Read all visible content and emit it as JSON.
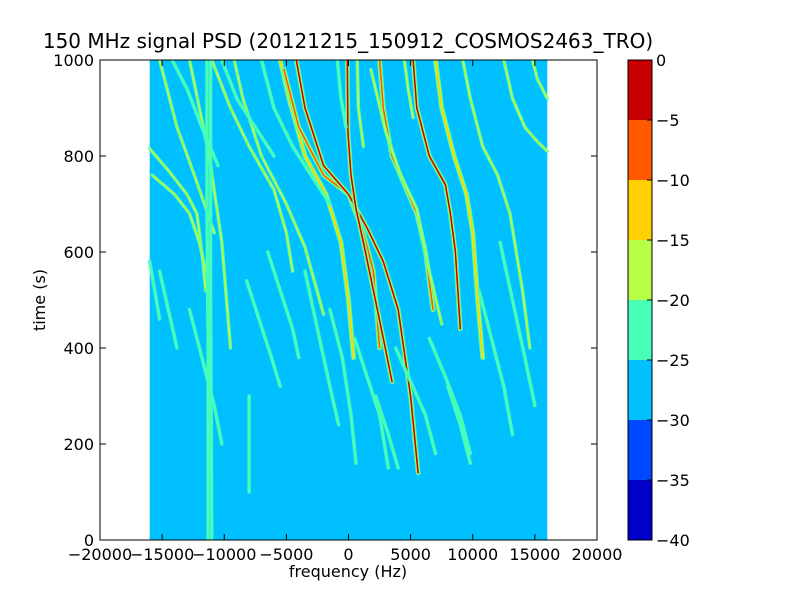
{
  "chart_data": {
    "type": "heatmap",
    "title": "150 MHz signal PSD (20121215_150912_COSMOS2463_TRO)",
    "xlabel": "frequency (Hz)",
    "ylabel": "time (s)",
    "xlim": [
      -20000,
      20000
    ],
    "ylim": [
      0,
      1000
    ],
    "data_extent": {
      "x": [
        -16000,
        16000
      ],
      "y": [
        0,
        1000
      ]
    },
    "x_ticks": [
      -20000,
      -15000,
      -10000,
      -5000,
      0,
      5000,
      10000,
      15000,
      20000
    ],
    "x_tick_labels": [
      "−20000",
      "−15000",
      "−10000",
      "−5000",
      "0",
      "5000",
      "10000",
      "15000",
      "20000"
    ],
    "y_ticks": [
      0,
      200,
      400,
      600,
      800,
      1000
    ],
    "y_tick_labels": [
      "0",
      "200",
      "400",
      "600",
      "800",
      "1000"
    ],
    "background_level": -27.5,
    "colorbar": {
      "min": -40,
      "max": 0,
      "ticks": [
        0,
        -5,
        -10,
        -15,
        -20,
        -25,
        -30,
        -35,
        -40
      ],
      "tick_labels": [
        "0",
        "−5",
        "−10",
        "−15",
        "−20",
        "−25",
        "−30",
        "−35",
        "−40"
      ],
      "levels": [
        {
          "range": [
            -40,
            -35
          ],
          "color": "#0000c8"
        },
        {
          "range": [
            -35,
            -30
          ],
          "color": "#0048ff"
        },
        {
          "range": [
            -30,
            -25
          ],
          "color": "#00c0ff"
        },
        {
          "range": [
            -25,
            -20
          ],
          "color": "#48ffb8"
        },
        {
          "range": [
            -20,
            -15
          ],
          "color": "#b8ff48"
        },
        {
          "range": [
            -15,
            -10
          ],
          "color": "#ffd000"
        },
        {
          "range": [
            -10,
            -5
          ],
          "color": "#ff5a00"
        },
        {
          "range": [
            -5,
            0
          ],
          "color": "#c80000"
        }
      ]
    },
    "traces": [
      {
        "points": [
          [
            -16000,
            815
          ],
          [
            -14500,
            770
          ],
          [
            -13000,
            720
          ],
          [
            -12200,
            680
          ],
          [
            -11800,
            600
          ],
          [
            -11500,
            520
          ]
        ],
        "level": -17
      },
      {
        "points": [
          [
            -15800,
            760
          ],
          [
            -14000,
            720
          ],
          [
            -12800,
            680
          ],
          [
            -12000,
            620
          ],
          [
            -11500,
            560
          ]
        ],
        "level": -18
      },
      {
        "points": [
          [
            -15200,
            1000
          ],
          [
            -13800,
            860
          ],
          [
            -12400,
            760
          ],
          [
            -11600,
            700
          ],
          [
            -10800,
            640
          ]
        ],
        "level": -17
      },
      {
        "points": [
          [
            -12800,
            1000
          ],
          [
            -12000,
            900
          ],
          [
            -11200,
            800
          ],
          [
            -10200,
            620
          ],
          [
            -9500,
            400
          ]
        ],
        "level": -17
      },
      {
        "points": [
          [
            -11000,
            1000
          ],
          [
            -9500,
            900
          ],
          [
            -8000,
            820
          ],
          [
            -6000,
            730
          ],
          [
            -5000,
            640
          ],
          [
            -4500,
            560
          ]
        ],
        "level": -18
      },
      {
        "points": [
          [
            -9200,
            1000
          ],
          [
            -8500,
            920
          ],
          [
            -7000,
            800
          ],
          [
            -5000,
            700
          ],
          [
            -3500,
            610
          ],
          [
            -2000,
            470
          ]
        ],
        "level": -19
      },
      {
        "points": [
          [
            -5500,
            1000
          ],
          [
            -4800,
            920
          ],
          [
            -3500,
            800
          ],
          [
            -1800,
            720
          ],
          [
            -600,
            620
          ],
          [
            0,
            500
          ],
          [
            400,
            380
          ]
        ],
        "level": -12
      },
      {
        "points": [
          [
            -5200,
            980
          ],
          [
            -4000,
            860
          ],
          [
            -2000,
            760
          ],
          [
            0,
            720
          ],
          [
            1200,
            640
          ],
          [
            2000,
            560
          ],
          [
            2500,
            400
          ]
        ],
        "level": -8
      },
      {
        "points": [
          [
            -4200,
            1000
          ],
          [
            -3500,
            900
          ],
          [
            -2000,
            780
          ],
          [
            0,
            720
          ],
          [
            1500,
            650
          ],
          [
            2800,
            580
          ],
          [
            4000,
            480
          ],
          [
            5000,
            300
          ],
          [
            5600,
            140
          ]
        ],
        "level": -4
      },
      {
        "points": [
          [
            -100,
            1000
          ],
          [
            -50,
            850
          ],
          [
            200,
            760
          ],
          [
            600,
            690
          ],
          [
            1200,
            620
          ],
          [
            2000,
            520
          ],
          [
            2800,
            420
          ],
          [
            3500,
            330
          ]
        ],
        "level": -3
      },
      {
        "points": [
          [
            2500,
            1000
          ],
          [
            2800,
            900
          ],
          [
            3500,
            800
          ],
          [
            4500,
            740
          ],
          [
            5500,
            680
          ],
          [
            6200,
            600
          ],
          [
            6800,
            480
          ]
        ],
        "level": -6
      },
      {
        "points": [
          [
            1800,
            980
          ],
          [
            3000,
            850
          ],
          [
            4200,
            760
          ],
          [
            5500,
            690
          ],
          [
            6500,
            560
          ],
          [
            7500,
            450
          ]
        ],
        "level": -16
      },
      {
        "points": [
          [
            5200,
            1000
          ],
          [
            5500,
            900
          ],
          [
            6500,
            800
          ],
          [
            7800,
            740
          ],
          [
            8200,
            680
          ],
          [
            8600,
            600
          ],
          [
            9000,
            440
          ]
        ],
        "level": -5
      },
      {
        "points": [
          [
            7000,
            1000
          ],
          [
            7500,
            900
          ],
          [
            8500,
            800
          ],
          [
            9500,
            720
          ],
          [
            10000,
            640
          ],
          [
            10400,
            500
          ],
          [
            10800,
            380
          ]
        ],
        "level": -14
      },
      {
        "points": [
          [
            9200,
            1000
          ],
          [
            9800,
            920
          ],
          [
            10800,
            820
          ],
          [
            12000,
            760
          ],
          [
            13000,
            680
          ],
          [
            14000,
            520
          ],
          [
            14600,
            400
          ]
        ],
        "level": -17
      },
      {
        "points": [
          [
            12500,
            1000
          ],
          [
            13200,
            920
          ],
          [
            14200,
            860
          ],
          [
            15200,
            830
          ],
          [
            16000,
            810
          ]
        ],
        "level": -17
      },
      {
        "points": [
          [
            14800,
            1000
          ],
          [
            15200,
            960
          ],
          [
            16000,
            920
          ]
        ],
        "level": -20
      },
      {
        "points": [
          [
            -14200,
            1000
          ],
          [
            -13000,
            940
          ],
          [
            -11800,
            860
          ],
          [
            -10500,
            780
          ]
        ],
        "level": -22
      },
      {
        "points": [
          [
            -10200,
            1000
          ],
          [
            -9000,
            920
          ],
          [
            -7500,
            860
          ],
          [
            -6000,
            800
          ]
        ],
        "level": -22
      },
      {
        "points": [
          [
            -7000,
            1000
          ],
          [
            -6000,
            900
          ],
          [
            -4500,
            820
          ],
          [
            -3000,
            760
          ],
          [
            -1500,
            700
          ]
        ],
        "level": -21
      },
      {
        "points": [
          [
            -6500,
            600
          ],
          [
            -5500,
            520
          ],
          [
            -4500,
            440
          ],
          [
            -4000,
            380
          ]
        ],
        "level": -22
      },
      {
        "points": [
          [
            -8200,
            540
          ],
          [
            -7200,
            460
          ],
          [
            -6200,
            380
          ],
          [
            -5500,
            320
          ]
        ],
        "level": -23
      },
      {
        "points": [
          [
            -3500,
            560
          ],
          [
            -2500,
            440
          ],
          [
            -1500,
            320
          ],
          [
            -800,
            240
          ]
        ],
        "level": -22
      },
      {
        "points": [
          [
            -1500,
            480
          ],
          [
            -500,
            380
          ],
          [
            200,
            260
          ],
          [
            600,
            160
          ]
        ],
        "level": -23
      },
      {
        "points": [
          [
            500,
            420
          ],
          [
            1500,
            340
          ],
          [
            2500,
            260
          ],
          [
            3200,
            150
          ]
        ],
        "level": -22
      },
      {
        "points": [
          [
            3800,
            400
          ],
          [
            5000,
            330
          ],
          [
            6200,
            260
          ],
          [
            7000,
            180
          ]
        ],
        "level": -23
      },
      {
        "points": [
          [
            6500,
            420
          ],
          [
            7800,
            340
          ],
          [
            9000,
            260
          ],
          [
            9800,
            180
          ]
        ],
        "level": -23
      },
      {
        "points": [
          [
            10500,
            520
          ],
          [
            11500,
            420
          ],
          [
            12500,
            320
          ],
          [
            13200,
            220
          ]
        ],
        "level": -23
      },
      {
        "points": [
          [
            12200,
            620
          ],
          [
            13200,
            500
          ],
          [
            14200,
            380
          ],
          [
            15000,
            280
          ]
        ],
        "level": -23
      },
      {
        "points": [
          [
            -12800,
            480
          ],
          [
            -11800,
            380
          ],
          [
            -10800,
            280
          ],
          [
            -10200,
            200
          ]
        ],
        "level": -24
      },
      {
        "points": [
          [
            -15200,
            560
          ],
          [
            -14500,
            480
          ],
          [
            -13800,
            400
          ]
        ],
        "level": -23
      },
      {
        "points": [
          [
            -16000,
            580
          ],
          [
            -15600,
            520
          ],
          [
            -15200,
            460
          ]
        ],
        "level": -21
      },
      {
        "points": [
          [
            -11400,
            1000
          ],
          [
            -11400,
            700
          ],
          [
            -11300,
            400
          ],
          [
            -11300,
            0
          ]
        ],
        "level": -21
      },
      {
        "points": [
          [
            -11100,
            1000
          ],
          [
            -11100,
            500
          ],
          [
            -11000,
            0
          ]
        ],
        "level": -24
      },
      {
        "points": [
          [
            -8000,
            300
          ],
          [
            -8000,
            100
          ]
        ],
        "level": -23
      },
      {
        "points": [
          [
            700,
            1000
          ],
          [
            800,
            900
          ],
          [
            1200,
            820
          ]
        ],
        "level": -20
      },
      {
        "points": [
          [
            -900,
            1000
          ],
          [
            -600,
            920
          ],
          [
            -200,
            860
          ]
        ],
        "level": -21
      },
      {
        "points": [
          [
            4500,
            1000
          ],
          [
            4800,
            940
          ],
          [
            5200,
            880
          ]
        ],
        "level": -20
      },
      {
        "points": [
          [
            8000,
            320
          ],
          [
            9000,
            240
          ],
          [
            9800,
            160
          ]
        ],
        "level": -24
      },
      {
        "points": [
          [
            2200,
            300
          ],
          [
            3200,
            220
          ],
          [
            4000,
            150
          ]
        ],
        "level": -24
      }
    ]
  }
}
